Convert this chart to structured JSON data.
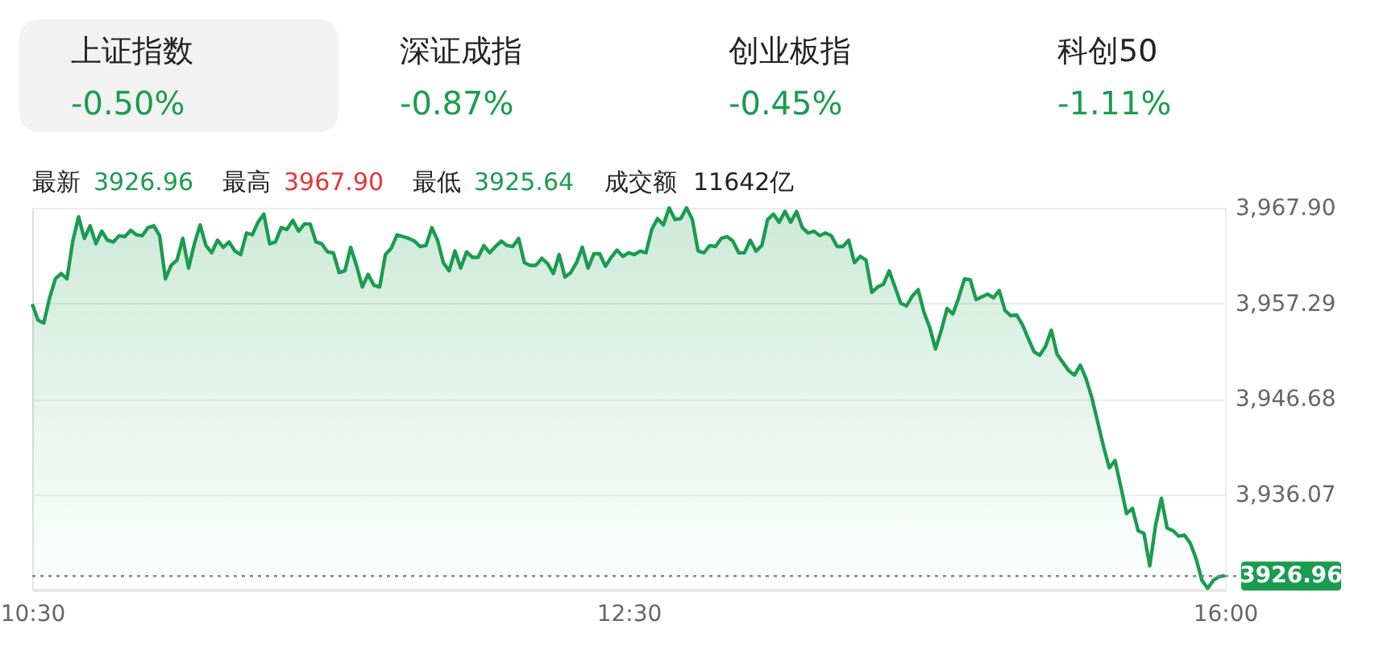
{
  "chart_data": {
    "type": "area",
    "color": "#1a9c4f",
    "grid": "y",
    "categories": [
      "10:30",
      null,
      null,
      null,
      null,
      null,
      null,
      null,
      null,
      null,
      null,
      null,
      null,
      null,
      null,
      null,
      null,
      null,
      null,
      null,
      null,
      null,
      null,
      null,
      null,
      null,
      null,
      null,
      null,
      null,
      null,
      null,
      null,
      null,
      null,
      null,
      null,
      null,
      null,
      null,
      null,
      null,
      null,
      null,
      null,
      null,
      null,
      null,
      null,
      null,
      null,
      null,
      null,
      null,
      null,
      null,
      null,
      null,
      null,
      null,
      null,
      null,
      null,
      null,
      null,
      null,
      null,
      null,
      null,
      null,
      null,
      null,
      null,
      null,
      null,
      null,
      null,
      null,
      null,
      null,
      null,
      null,
      null,
      null,
      null,
      null,
      null,
      null,
      null,
      null,
      null,
      null,
      null,
      null,
      null,
      null,
      null,
      null,
      null,
      null,
      null,
      null,
      null,
      "12:30",
      null,
      null,
      null,
      null,
      null,
      null,
      null,
      null,
      null,
      null,
      null,
      null,
      null,
      null,
      null,
      null,
      null,
      null,
      null,
      null,
      null,
      null,
      null,
      null,
      null,
      null,
      null,
      null,
      null,
      null,
      null,
      null,
      null,
      null,
      null,
      null,
      null,
      null,
      null,
      null,
      null,
      null,
      null,
      null,
      null,
      null,
      null,
      null,
      null,
      null,
      null,
      null,
      null,
      null,
      null,
      null,
      null,
      null,
      null,
      null,
      null,
      null,
      null,
      null,
      null,
      null,
      null,
      null,
      null,
      null,
      null,
      null,
      null,
      null,
      null,
      null,
      null,
      null,
      null,
      null,
      null,
      null,
      null,
      null,
      null,
      null,
      null,
      null,
      null,
      null,
      null,
      null,
      null,
      null,
      null,
      null,
      null,
      null,
      null,
      null,
      null,
      null,
      "16:00"
    ],
    "values": [
      3957.2,
      3955.4,
      3955.1,
      3957.9,
      3960.0,
      3960.6,
      3960.0,
      3964.2,
      3966.9,
      3964.5,
      3965.9,
      3963.9,
      3965.3,
      3964.3,
      3964.1,
      3964.8,
      3964.7,
      3965.4,
      3964.9,
      3964.8,
      3965.7,
      3965.9,
      3964.8,
      3960.0,
      3961.5,
      3962.1,
      3964.5,
      3961.2,
      3963.9,
      3966.0,
      3963.7,
      3962.9,
      3964.3,
      3963.5,
      3964.1,
      3963.1,
      3962.7,
      3965.1,
      3964.9,
      3966.3,
      3967.2,
      3963.9,
      3964.1,
      3965.7,
      3965.5,
      3966.5,
      3965.3,
      3966.1,
      3966.1,
      3964.1,
      3963.9,
      3963.0,
      3962.9,
      3960.7,
      3960.9,
      3963.5,
      3961.5,
      3959.1,
      3960.5,
      3959.3,
      3959.1,
      3962.7,
      3963.4,
      3964.9,
      3964.7,
      3964.5,
      3964.2,
      3963.6,
      3963.7,
      3965.7,
      3964.3,
      3961.8,
      3960.9,
      3963.1,
      3961.2,
      3963.0,
      3962.4,
      3962.4,
      3963.7,
      3962.9,
      3963.6,
      3964.2,
      3963.7,
      3963.6,
      3964.5,
      3961.8,
      3961.5,
      3961.5,
      3962.3,
      3961.7,
      3960.6,
      3962.7,
      3960.2,
      3960.7,
      3961.8,
      3963.5,
      3961.2,
      3962.8,
      3962.8,
      3961.4,
      3962.4,
      3963.2,
      3962.5,
      3962.9,
      3962.7,
      3963.1,
      3962.9,
      3965.5,
      3966.7,
      3966.0,
      3967.9,
      3966.6,
      3966.7,
      3967.9,
      3966.6,
      3963.1,
      3962.9,
      3963.7,
      3963.6,
      3964.5,
      3964.7,
      3964.2,
      3962.9,
      3962.9,
      3964.3,
      3963.1,
      3963.7,
      3966.6,
      3967.2,
      3966.3,
      3967.5,
      3966.3,
      3967.5,
      3965.7,
      3965.1,
      3965.3,
      3964.8,
      3965.1,
      3964.8,
      3963.6,
      3963.6,
      3964.3,
      3961.8,
      3962.5,
      3962.1,
      3958.5,
      3959.1,
      3959.4,
      3960.9,
      3959.1,
      3957.3,
      3957.0,
      3958.1,
      3958.8,
      3956.3,
      3954.6,
      3952.2,
      3954.3,
      3956.7,
      3956.1,
      3957.9,
      3960.0,
      3959.9,
      3957.7,
      3958.0,
      3958.3,
      3957.9,
      3958.7,
      3956.5,
      3955.9,
      3956.0,
      3954.9,
      3953.4,
      3951.9,
      3951.5,
      3952.5,
      3954.3,
      3951.6,
      3950.7,
      3949.8,
      3949.3,
      3950.4,
      3948.9,
      3946.8,
      3944.1,
      3941.4,
      3939.0,
      3939.8,
      3936.9,
      3933.9,
      3934.5,
      3932.0,
      3931.7,
      3928.1,
      3932.6,
      3935.6,
      3932.3,
      3932.0,
      3931.4,
      3931.5,
      3930.6,
      3928.9,
      3926.5,
      3925.6,
      3926.5,
      3926.9,
      3927.0
    ],
    "ylim": [
      3925.46,
      3967.9
    ],
    "yticks": [
      {
        "value": 3936.07,
        "label": "3,936.07"
      },
      {
        "value": 3946.68,
        "label": "3,946.68"
      },
      {
        "value": 3957.29,
        "label": "3,957.29"
      },
      {
        "value": 3967.9,
        "label": "3,967.90"
      }
    ],
    "ref_lines": [
      {
        "axis": "y",
        "value": 3926.96,
        "label": "3926.96",
        "line_style": "dotted"
      }
    ],
    "annotations": [
      "上证指数",
      "-0.50%",
      "深证成指",
      "-0.87%",
      "创业板指",
      "-0.45%",
      "科创50",
      "-1.11%",
      "最新",
      "3926.96",
      "最高",
      "3967.90",
      "最低",
      "3925.64",
      "成交额",
      "11642亿"
    ]
  }
}
